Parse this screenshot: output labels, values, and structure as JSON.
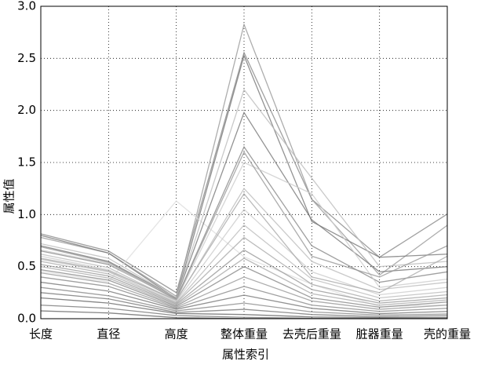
{
  "chart_data": {
    "type": "parallel",
    "x_label": "属性索引",
    "y_label": "属性值",
    "categories": [
      "长度",
      "直径",
      "高度",
      "整体重量",
      "去壳后重量",
      "脏器重量",
      "壳的重量"
    ],
    "ylim": [
      0,
      3
    ],
    "grid": true,
    "yticks": [
      {
        "value": 0,
        "label": "0.0"
      },
      0.5,
      {
        "value": 1,
        "label": "1.0"
      },
      1.5,
      {
        "value": 2,
        "label": "2.0"
      },
      2.5,
      {
        "value": 3,
        "label": "3.0"
      }
    ],
    "lines": [
      {
        "color": "#888888",
        "values": [
          0.815,
          0.65,
          0.25,
          2.555,
          1.146,
          0.59,
          1.005
        ]
      },
      {
        "color": "#999999",
        "values": [
          0.78,
          0.63,
          0.215,
          2.8255,
          1.1465,
          0.419,
          0.897
        ]
      },
      {
        "color": "#777777",
        "values": [
          0.8,
          0.63,
          0.195,
          2.526,
          0.933,
          0.59,
          0.62
        ]
      },
      {
        "color": "#dddddd",
        "values": [
          0.455,
          0.355,
          1.13,
          0.594,
          0.332,
          0.116,
          0.1335
        ]
      },
      {
        "color": "#777777",
        "values": [
          0.7,
          0.55,
          0.2,
          1.98,
          0.95,
          0.45,
          0.5
        ]
      },
      {
        "color": "#888888",
        "values": [
          0.65,
          0.52,
          0.19,
          1.65,
          0.7,
          0.35,
          0.45
        ]
      },
      {
        "color": "#bbbbbb",
        "values": [
          0.62,
          0.49,
          0.17,
          1.25,
          0.55,
          0.28,
          0.35
        ]
      },
      {
        "color": "#cccccc",
        "values": [
          0.6,
          0.47,
          0.165,
          1.05,
          0.45,
          0.23,
          0.3
        ]
      },
      {
        "color": "#bbbbbb",
        "values": [
          0.57,
          0.45,
          0.155,
          0.9,
          0.38,
          0.2,
          0.26
        ]
      },
      {
        "color": "#aaaaaa",
        "values": [
          0.55,
          0.43,
          0.15,
          0.78,
          0.33,
          0.17,
          0.23
        ]
      },
      {
        "color": "#999999",
        "values": [
          0.52,
          0.41,
          0.14,
          0.66,
          0.28,
          0.15,
          0.2
        ]
      },
      {
        "color": "#aaaaaa",
        "values": [
          0.5,
          0.39,
          0.13,
          0.58,
          0.24,
          0.13,
          0.18
        ]
      },
      {
        "color": "#888888",
        "values": [
          0.47,
          0.37,
          0.12,
          0.5,
          0.2,
          0.11,
          0.16
        ]
      },
      {
        "color": "#999999",
        "values": [
          0.44,
          0.34,
          0.11,
          0.4,
          0.17,
          0.09,
          0.13
        ]
      },
      {
        "color": "#888888",
        "values": [
          0.4,
          0.31,
          0.1,
          0.31,
          0.13,
          0.07,
          0.1
        ]
      },
      {
        "color": "#777777",
        "values": [
          0.35,
          0.265,
          0.09,
          0.226,
          0.0995,
          0.0485,
          0.07
        ]
      },
      {
        "color": "#888888",
        "values": [
          0.3,
          0.22,
          0.075,
          0.15,
          0.065,
          0.035,
          0.045
        ]
      },
      {
        "color": "#777777",
        "values": [
          0.25,
          0.19,
          0.06,
          0.09,
          0.04,
          0.02,
          0.03
        ]
      },
      {
        "color": "#666666",
        "values": [
          0.2,
          0.15,
          0.05,
          0.04,
          0.017,
          0.01,
          0.012
        ]
      },
      {
        "color": "#777777",
        "values": [
          0.13,
          0.1,
          0.03,
          0.013,
          0.0045,
          0.003,
          0.004
        ]
      },
      {
        "color": "#666666",
        "values": [
          0.075,
          0.055,
          0.01,
          0.002,
          0.001,
          0.0005,
          0.0015
        ]
      },
      {
        "color": "#cccccc",
        "values": [
          0.66,
          0.53,
          0.18,
          1.5,
          1.2,
          0.3,
          0.38
        ]
      },
      {
        "color": "#bbbbbb",
        "values": [
          0.72,
          0.58,
          0.2,
          2.2,
          1.35,
          0.5,
          0.55
        ]
      },
      {
        "color": "#999999",
        "values": [
          0.69,
          0.54,
          0.185,
          1.6,
          0.6,
          0.4,
          0.7
        ]
      },
      {
        "color": "#aaaaaa",
        "values": [
          0.58,
          0.46,
          0.18,
          1.2,
          0.4,
          0.25,
          0.6
        ]
      }
    ]
  }
}
